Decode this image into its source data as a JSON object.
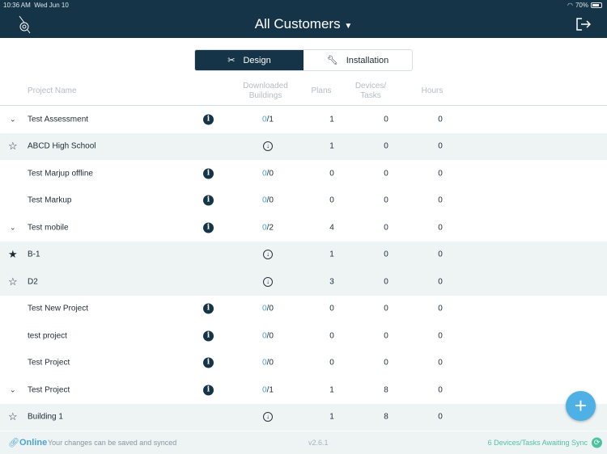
{
  "status_bar": {
    "time": "10:36 AM",
    "date": "Wed Jun 10",
    "battery": "70%"
  },
  "header": {
    "title": "All Customers",
    "dropdown_icon": "caret-down-icon"
  },
  "tabs": [
    {
      "label": "Design",
      "active": true
    },
    {
      "label": "Installation",
      "active": false
    }
  ],
  "columns": {
    "name": "Project Name",
    "downloaded_1": "Downloaded",
    "downloaded_2": "Buildings",
    "plans": "Plans",
    "devices_1": "Devices/",
    "devices_2": "Tasks",
    "hours": "Hours"
  },
  "rows": [
    {
      "type": "project",
      "expand": true,
      "name": "Test Assessment",
      "downloaded": "0",
      "total": "/1",
      "plans": "1",
      "devices": "0",
      "hours": "0"
    },
    {
      "type": "building",
      "star": false,
      "name": "ABCD High School",
      "plans": "1",
      "devices": "0",
      "hours": "0"
    },
    {
      "type": "project",
      "expand": false,
      "name": "Test Marjup offline",
      "downloaded": "0",
      "total": "/0",
      "plans": "0",
      "devices": "0",
      "hours": "0"
    },
    {
      "type": "project",
      "expand": false,
      "name": "Test Markup",
      "downloaded": "0",
      "total": "/0",
      "plans": "0",
      "devices": "0",
      "hours": "0"
    },
    {
      "type": "project",
      "expand": true,
      "name": "Test mobile",
      "downloaded": "0",
      "total": "/2",
      "plans": "4",
      "devices": "0",
      "hours": "0"
    },
    {
      "type": "building",
      "star": true,
      "name": "B-1",
      "plans": "1",
      "devices": "0",
      "hours": "0"
    },
    {
      "type": "building",
      "star": false,
      "name": "D2",
      "plans": "3",
      "devices": "0",
      "hours": "0"
    },
    {
      "type": "project",
      "expand": false,
      "name": "Test New Project",
      "downloaded": "0",
      "total": "/0",
      "plans": "0",
      "devices": "0",
      "hours": "0"
    },
    {
      "type": "project",
      "expand": false,
      "name": "test project",
      "downloaded": "0",
      "total": "/0",
      "plans": "0",
      "devices": "0",
      "hours": "0"
    },
    {
      "type": "project",
      "expand": false,
      "name": "Test Project",
      "downloaded": "0",
      "total": "/0",
      "plans": "0",
      "devices": "0",
      "hours": "0"
    },
    {
      "type": "project",
      "expand": true,
      "name": "Test Project",
      "downloaded": "0",
      "total": "/1",
      "plans": "1",
      "devices": "8",
      "hours": "0"
    },
    {
      "type": "building",
      "star": false,
      "name": "Building 1",
      "plans": "1",
      "devices": "8",
      "hours": "0"
    }
  ],
  "footer": {
    "online": "Online",
    "message": "Your changes can be saved and synced",
    "version": "v2.6.1",
    "sync": "6 Devices/Tasks Awaiting Sync"
  },
  "colors": {
    "navy": "#163447",
    "accent": "#4aa3d4",
    "sync": "#4fc3a1"
  }
}
